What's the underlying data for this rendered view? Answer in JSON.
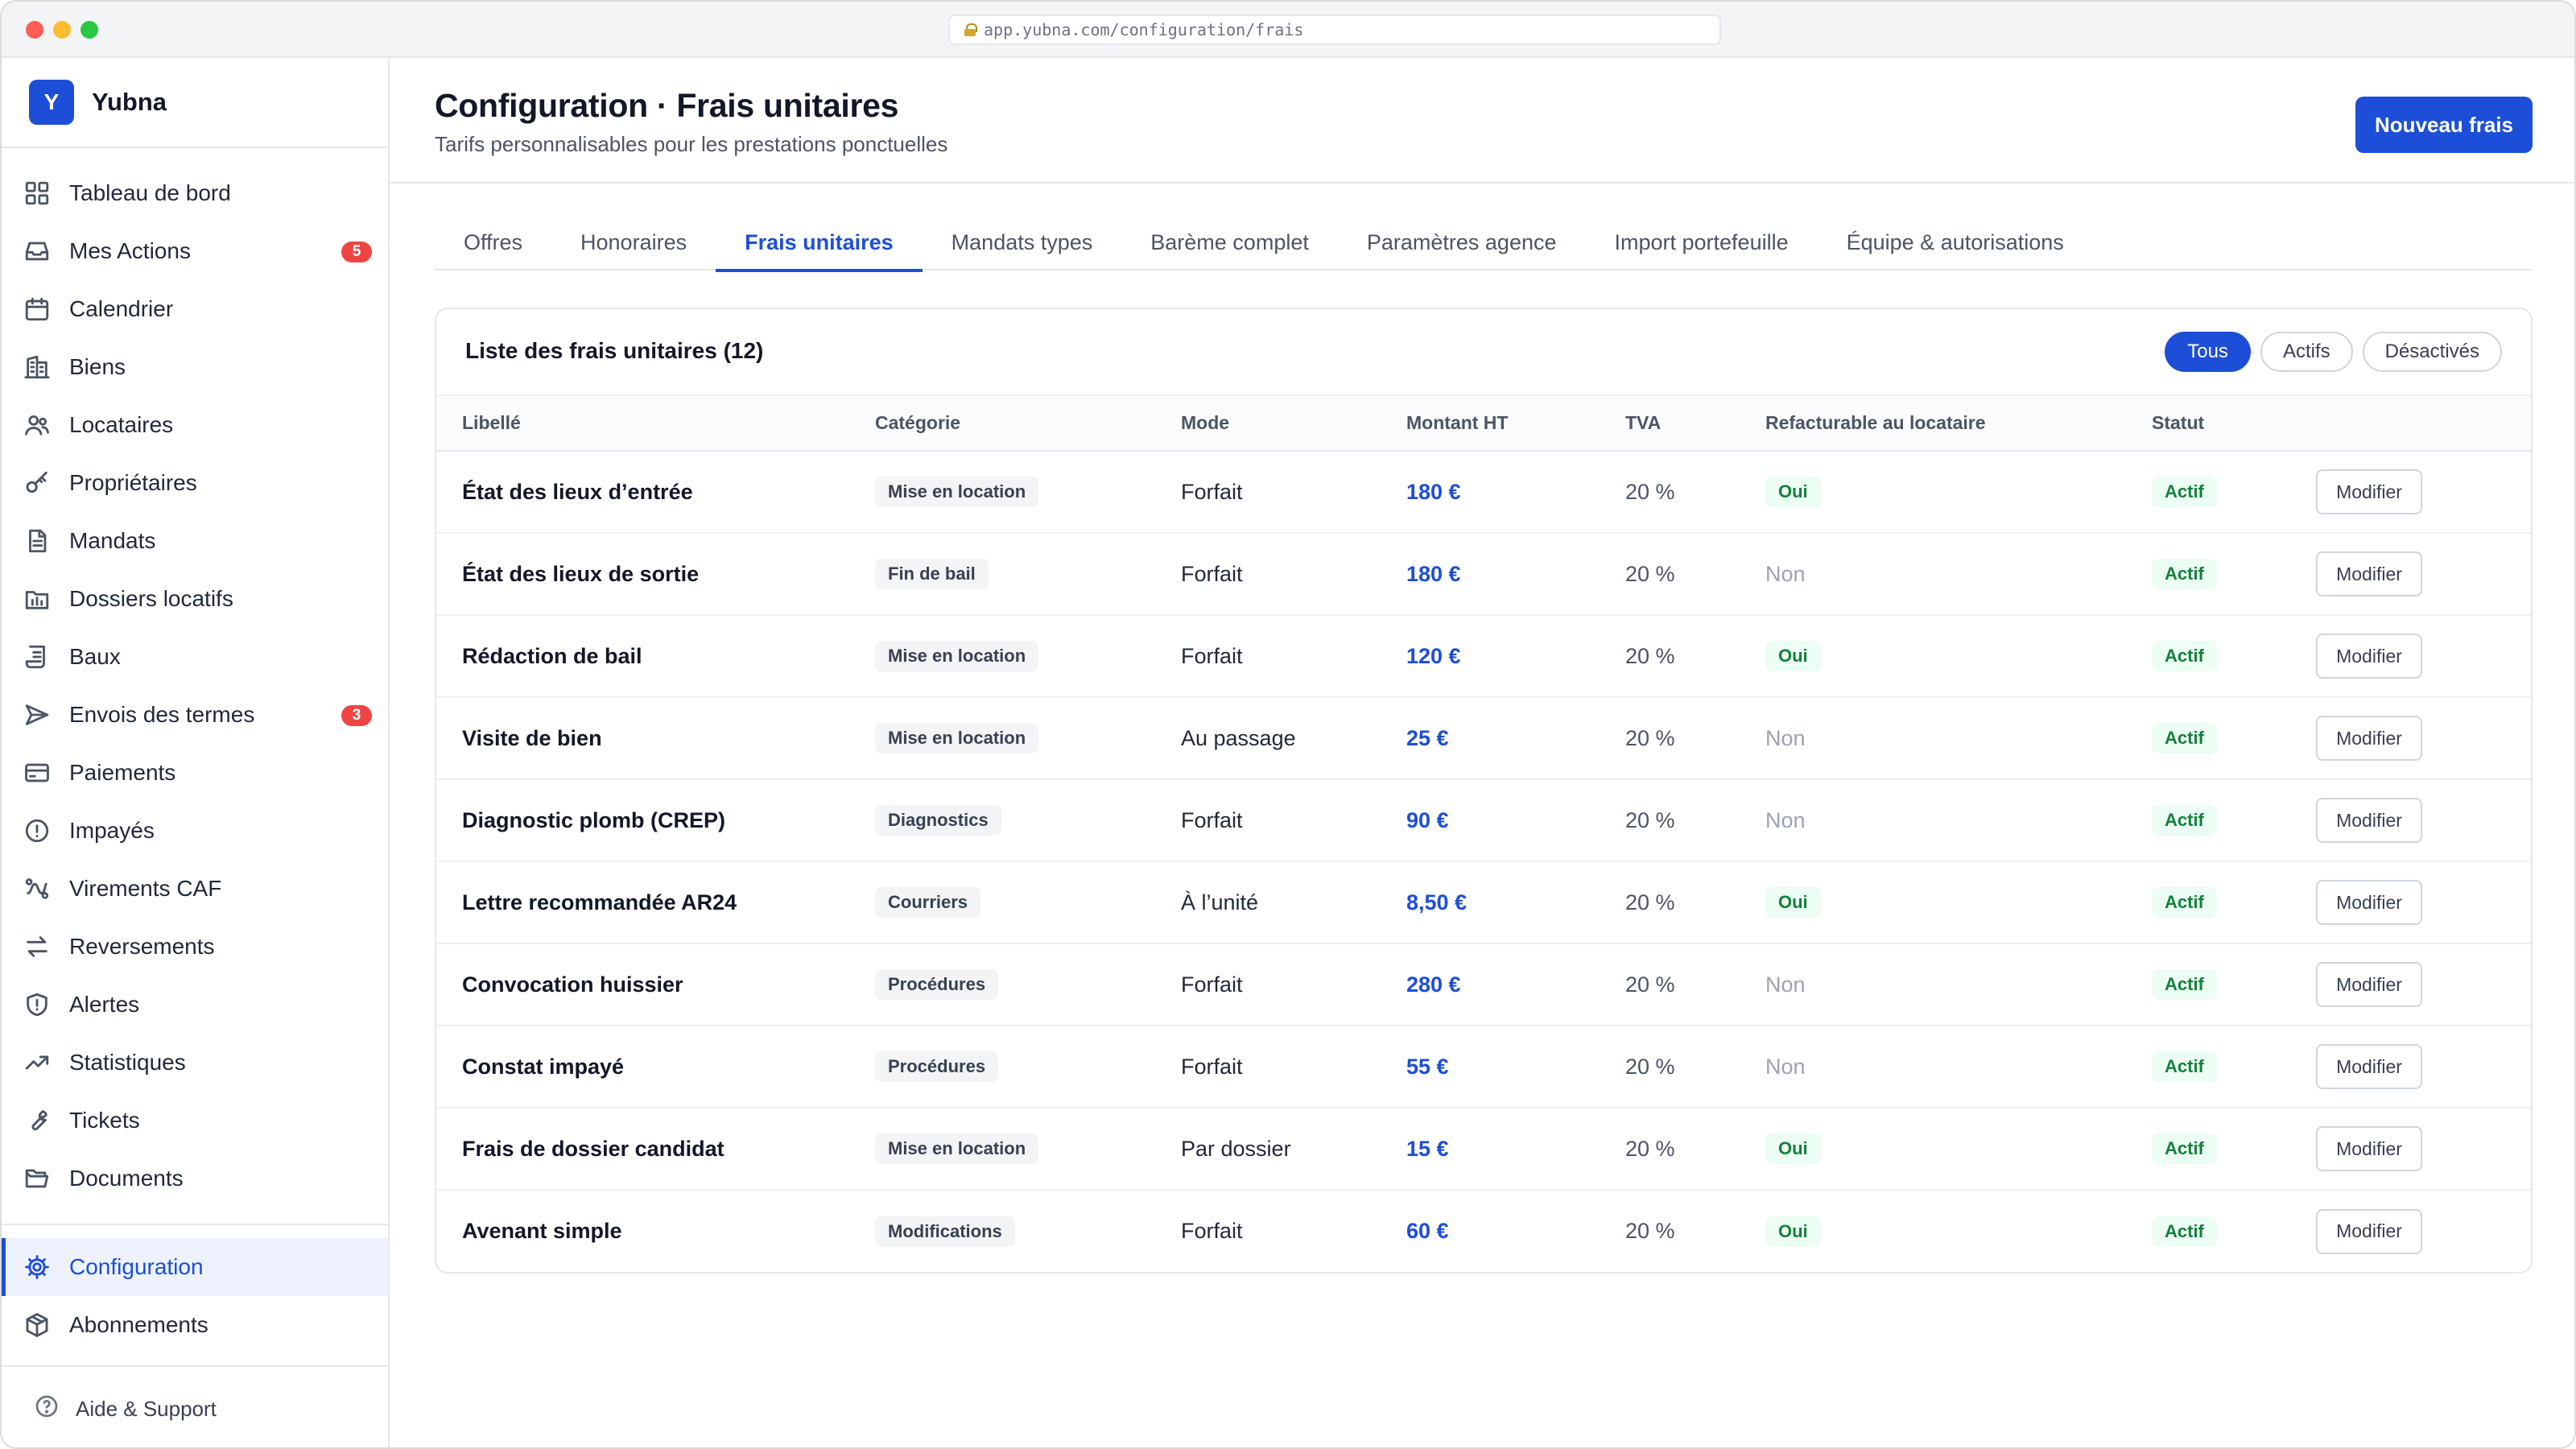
{
  "browser": {
    "url": "app.yubna.com/configuration/frais"
  },
  "brand": {
    "logo_letter": "Y",
    "name": "Yubna"
  },
  "sidebar": {
    "items": [
      {
        "label": "Tableau de bord",
        "icon": "dashboard-icon"
      },
      {
        "label": "Mes Actions",
        "icon": "inbox-icon",
        "badge": "5"
      },
      {
        "label": "Calendrier",
        "icon": "calendar-icon"
      },
      {
        "label": "Biens",
        "icon": "building-icon"
      },
      {
        "label": "Locataires",
        "icon": "users-icon"
      },
      {
        "label": "Propriétaires",
        "icon": "key-icon"
      },
      {
        "label": "Mandats",
        "icon": "document-icon"
      },
      {
        "label": "Dossiers locatifs",
        "icon": "folder-icon"
      },
      {
        "label": "Baux",
        "icon": "scroll-icon"
      },
      {
        "label": "Envois des termes",
        "icon": "send-icon",
        "badge": "3"
      },
      {
        "label": "Paiements",
        "icon": "credit-card-icon"
      },
      {
        "label": "Impayés",
        "icon": "alert-circle-icon"
      },
      {
        "label": "Virements CAF",
        "icon": "transfer-icon"
      },
      {
        "label": "Reversements",
        "icon": "arrows-icon"
      },
      {
        "label": "Alertes",
        "icon": "shield-icon"
      },
      {
        "label": "Statistiques",
        "icon": "trend-icon"
      },
      {
        "label": "Tickets",
        "icon": "wrench-icon"
      },
      {
        "label": "Documents",
        "icon": "folder-open-icon"
      }
    ],
    "secondary": [
      {
        "label": "Configuration",
        "icon": "gear-icon",
        "active": true
      },
      {
        "label": "Abonnements",
        "icon": "box-icon"
      }
    ],
    "footer": {
      "label": "Aide & Support",
      "icon": "help-icon"
    }
  },
  "header": {
    "title": "Configuration · Frais unitaires",
    "subtitle": "Tarifs personnalisables pour les prestations ponctuelles",
    "primary_button": "Nouveau frais"
  },
  "tabs": [
    {
      "label": "Offres"
    },
    {
      "label": "Honoraires"
    },
    {
      "label": "Frais unitaires",
      "active": true
    },
    {
      "label": "Mandats types"
    },
    {
      "label": "Barème complet"
    },
    {
      "label": "Paramètres agence"
    },
    {
      "label": "Import portefeuille"
    },
    {
      "label": "Équipe & autorisations"
    }
  ],
  "list": {
    "title": "Liste des frais unitaires (12)",
    "filters": [
      {
        "label": "Tous",
        "active": true
      },
      {
        "label": "Actifs"
      },
      {
        "label": "Désactivés"
      }
    ],
    "columns": [
      "Libellé",
      "Catégorie",
      "Mode",
      "Montant HT",
      "TVA",
      "Refacturable au locataire",
      "Statut"
    ],
    "edit_label": "Modifier",
    "rows": [
      {
        "libelle": "État des lieux d’entrée",
        "categorie": "Mise en location",
        "mode": "Forfait",
        "montant": "180 €",
        "tva": "20 %",
        "refacturable": "Oui",
        "statut": "Actif"
      },
      {
        "libelle": "État des lieux de sortie",
        "categorie": "Fin de bail",
        "mode": "Forfait",
        "montant": "180 €",
        "tva": "20 %",
        "refacturable": "Non",
        "statut": "Actif"
      },
      {
        "libelle": "Rédaction de bail",
        "categorie": "Mise en location",
        "mode": "Forfait",
        "montant": "120 €",
        "tva": "20 %",
        "refacturable": "Oui",
        "statut": "Actif"
      },
      {
        "libelle": "Visite de bien",
        "categorie": "Mise en location",
        "mode": "Au passage",
        "montant": "25 €",
        "tva": "20 %",
        "refacturable": "Non",
        "statut": "Actif"
      },
      {
        "libelle": "Diagnostic plomb (CREP)",
        "categorie": "Diagnostics",
        "mode": "Forfait",
        "montant": "90 €",
        "tva": "20 %",
        "refacturable": "Non",
        "statut": "Actif"
      },
      {
        "libelle": "Lettre recommandée AR24",
        "categorie": "Courriers",
        "mode": "À l’unité",
        "montant": "8,50 €",
        "tva": "20 %",
        "refacturable": "Oui",
        "statut": "Actif"
      },
      {
        "libelle": "Convocation huissier",
        "categorie": "Procédures",
        "mode": "Forfait",
        "montant": "280 €",
        "tva": "20 %",
        "refacturable": "Non",
        "statut": "Actif"
      },
      {
        "libelle": "Constat impayé",
        "categorie": "Procédures",
        "mode": "Forfait",
        "montant": "55 €",
        "tva": "20 %",
        "refacturable": "Non",
        "statut": "Actif"
      },
      {
        "libelle": "Frais de dossier candidat",
        "categorie": "Mise en location",
        "mode": "Par dossier",
        "montant": "15 €",
        "tva": "20 %",
        "refacturable": "Oui",
        "statut": "Actif"
      },
      {
        "libelle": "Avenant simple",
        "categorie": "Modifications",
        "mode": "Forfait",
        "montant": "60 €",
        "tva": "20 %",
        "refacturable": "Oui",
        "statut": "Actif"
      }
    ]
  },
  "colors": {
    "accent": "#1d4ed8",
    "success": "#15803d",
    "danger": "#ef4444"
  }
}
